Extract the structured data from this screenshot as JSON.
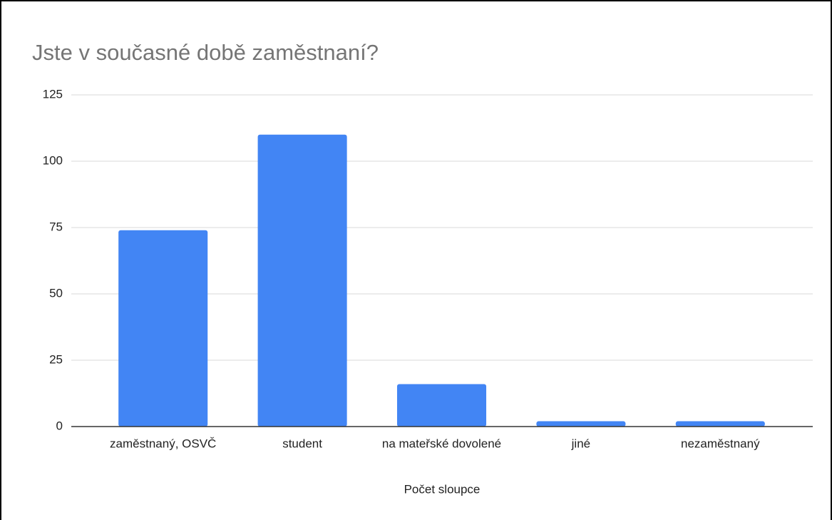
{
  "chart_data": {
    "type": "bar",
    "title": "Jste v současné době zaměstnaní?",
    "categories": [
      "zaměstnaný, OSVČ",
      "student",
      "na mateřské dovolené",
      "jiné",
      "nezaměstnaný"
    ],
    "values": [
      74,
      110,
      16,
      2,
      2
    ],
    "color": "#4285f4",
    "xlabel": "Počet sloupce",
    "ylim": [
      0,
      125
    ],
    "yticks": [
      0,
      25,
      50,
      75,
      100,
      125
    ],
    "grid": true
  }
}
